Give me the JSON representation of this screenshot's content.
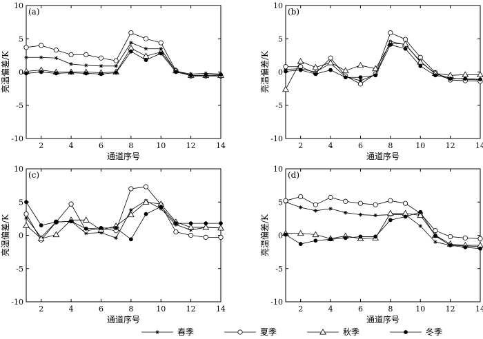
{
  "chart_data": {
    "type": "line",
    "x": [
      1,
      2,
      3,
      4,
      5,
      6,
      7,
      8,
      9,
      10,
      11,
      12,
      13,
      14
    ],
    "xticks": [
      2,
      4,
      6,
      8,
      10,
      12,
      14
    ],
    "yticks": [
      -10,
      -5,
      0,
      5,
      10
    ],
    "xlim": [
      1,
      14
    ],
    "ylim": [
      -10,
      10
    ],
    "xlabel": "通道序号",
    "ylabel": "亮温偏差/K",
    "legend": [
      {
        "name": "春季",
        "marker": "star"
      },
      {
        "name": "夏季",
        "marker": "circle-open"
      },
      {
        "name": "秋季",
        "marker": "triangle-open"
      },
      {
        "name": "冬季",
        "marker": "circle-filled"
      }
    ],
    "panels": [
      {
        "label": "(a)",
        "series": [
          {
            "name": "春季",
            "values": [
              2.2,
              2.2,
              2.1,
              1.2,
              1.0,
              0.9,
              0.9,
              4.4,
              3.5,
              3.5,
              0.1,
              -0.3,
              -0.2,
              -0.3
            ]
          },
          {
            "name": "夏季",
            "values": [
              3.7,
              4.0,
              3.3,
              2.6,
              2.6,
              2.1,
              1.7,
              5.9,
              5.0,
              4.4,
              0.2,
              -0.6,
              -0.6,
              -0.6
            ]
          },
          {
            "name": "秋季",
            "values": [
              0.1,
              0.3,
              0.0,
              0.0,
              0.0,
              -0.1,
              0.0,
              3.6,
              2.4,
              3.0,
              0.2,
              -0.5,
              -0.5,
              -0.5
            ]
          },
          {
            "name": "冬季",
            "values": [
              -0.2,
              0.0,
              -0.2,
              -0.1,
              -0.2,
              -0.3,
              -0.1,
              3.1,
              1.8,
              2.8,
              0.0,
              -0.5,
              -0.5,
              -0.4
            ]
          }
        ]
      },
      {
        "label": "(b)",
        "series": [
          {
            "name": "春季",
            "values": [
              0.4,
              0.5,
              0.0,
              1.3,
              -0.7,
              -1.3,
              -0.4,
              4.6,
              4.1,
              1.6,
              -0.3,
              -0.9,
              -1.1,
              -1.2
            ]
          },
          {
            "name": "夏季",
            "values": [
              0.8,
              0.8,
              -0.2,
              2.1,
              -0.6,
              -1.8,
              -0.3,
              5.9,
              4.9,
              2.2,
              -0.1,
              -1.2,
              -1.3,
              -1.4
            ]
          },
          {
            "name": "秋季",
            "values": [
              -2.6,
              1.6,
              0.7,
              1.4,
              0.2,
              1.0,
              0.5,
              4.3,
              4.2,
              1.5,
              -0.2,
              -0.5,
              -0.4,
              -0.4
            ]
          },
          {
            "name": "冬季",
            "values": [
              0.1,
              0.3,
              -0.3,
              0.3,
              -0.8,
              -0.8,
              -0.5,
              4.1,
              3.5,
              0.9,
              -0.5,
              -1.0,
              -1.0,
              -1.1
            ]
          }
        ]
      },
      {
        "label": "(c)",
        "series": [
          {
            "name": "春季",
            "values": [
              2.6,
              -0.3,
              2.0,
              2.1,
              0.3,
              0.4,
              -0.4,
              3.8,
              5.2,
              4.0,
              1.6,
              0.8,
              1.2,
              1.1
            ]
          },
          {
            "name": "夏季",
            "values": [
              3.2,
              -0.7,
              2.0,
              4.7,
              0.7,
              1.0,
              0.7,
              7.0,
              7.3,
              4.6,
              0.5,
              0.0,
              -0.3,
              -0.3
            ]
          },
          {
            "name": "秋季",
            "values": [
              1.5,
              -0.5,
              0.1,
              2.3,
              2.3,
              0.8,
              1.4,
              3.1,
              5.0,
              4.7,
              2.0,
              1.2,
              1.2,
              1.1
            ]
          },
          {
            "name": "冬季",
            "values": [
              5.0,
              1.5,
              2.0,
              2.1,
              1.0,
              1.1,
              1.1,
              -0.6,
              3.2,
              4.3,
              1.8,
              1.8,
              1.8,
              1.8
            ]
          }
        ]
      },
      {
        "label": "(d)",
        "series": [
          {
            "name": "春季",
            "values": [
              5.0,
              4.2,
              3.7,
              4.0,
              3.4,
              3.1,
              3.0,
              3.1,
              3.1,
              1.4,
              -1.0,
              -1.5,
              -1.6,
              -1.7
            ]
          },
          {
            "name": "夏季",
            "values": [
              5.2,
              5.8,
              4.6,
              5.7,
              5.1,
              4.8,
              4.6,
              5.2,
              4.8,
              3.3,
              0.7,
              -0.2,
              -0.4,
              -0.5
            ]
          },
          {
            "name": "秋季",
            "values": [
              0.3,
              0.3,
              0.1,
              -0.5,
              -0.1,
              -0.5,
              -0.4,
              3.3,
              3.3,
              3.0,
              0.0,
              -1.3,
              -1.5,
              -1.5
            ]
          },
          {
            "name": "冬季",
            "values": [
              0.1,
              -1.3,
              -0.8,
              -0.6,
              -0.4,
              -0.2,
              -0.2,
              2.3,
              2.8,
              3.5,
              -0.1,
              -1.5,
              -1.8,
              -2.0
            ]
          }
        ]
      }
    ]
  }
}
